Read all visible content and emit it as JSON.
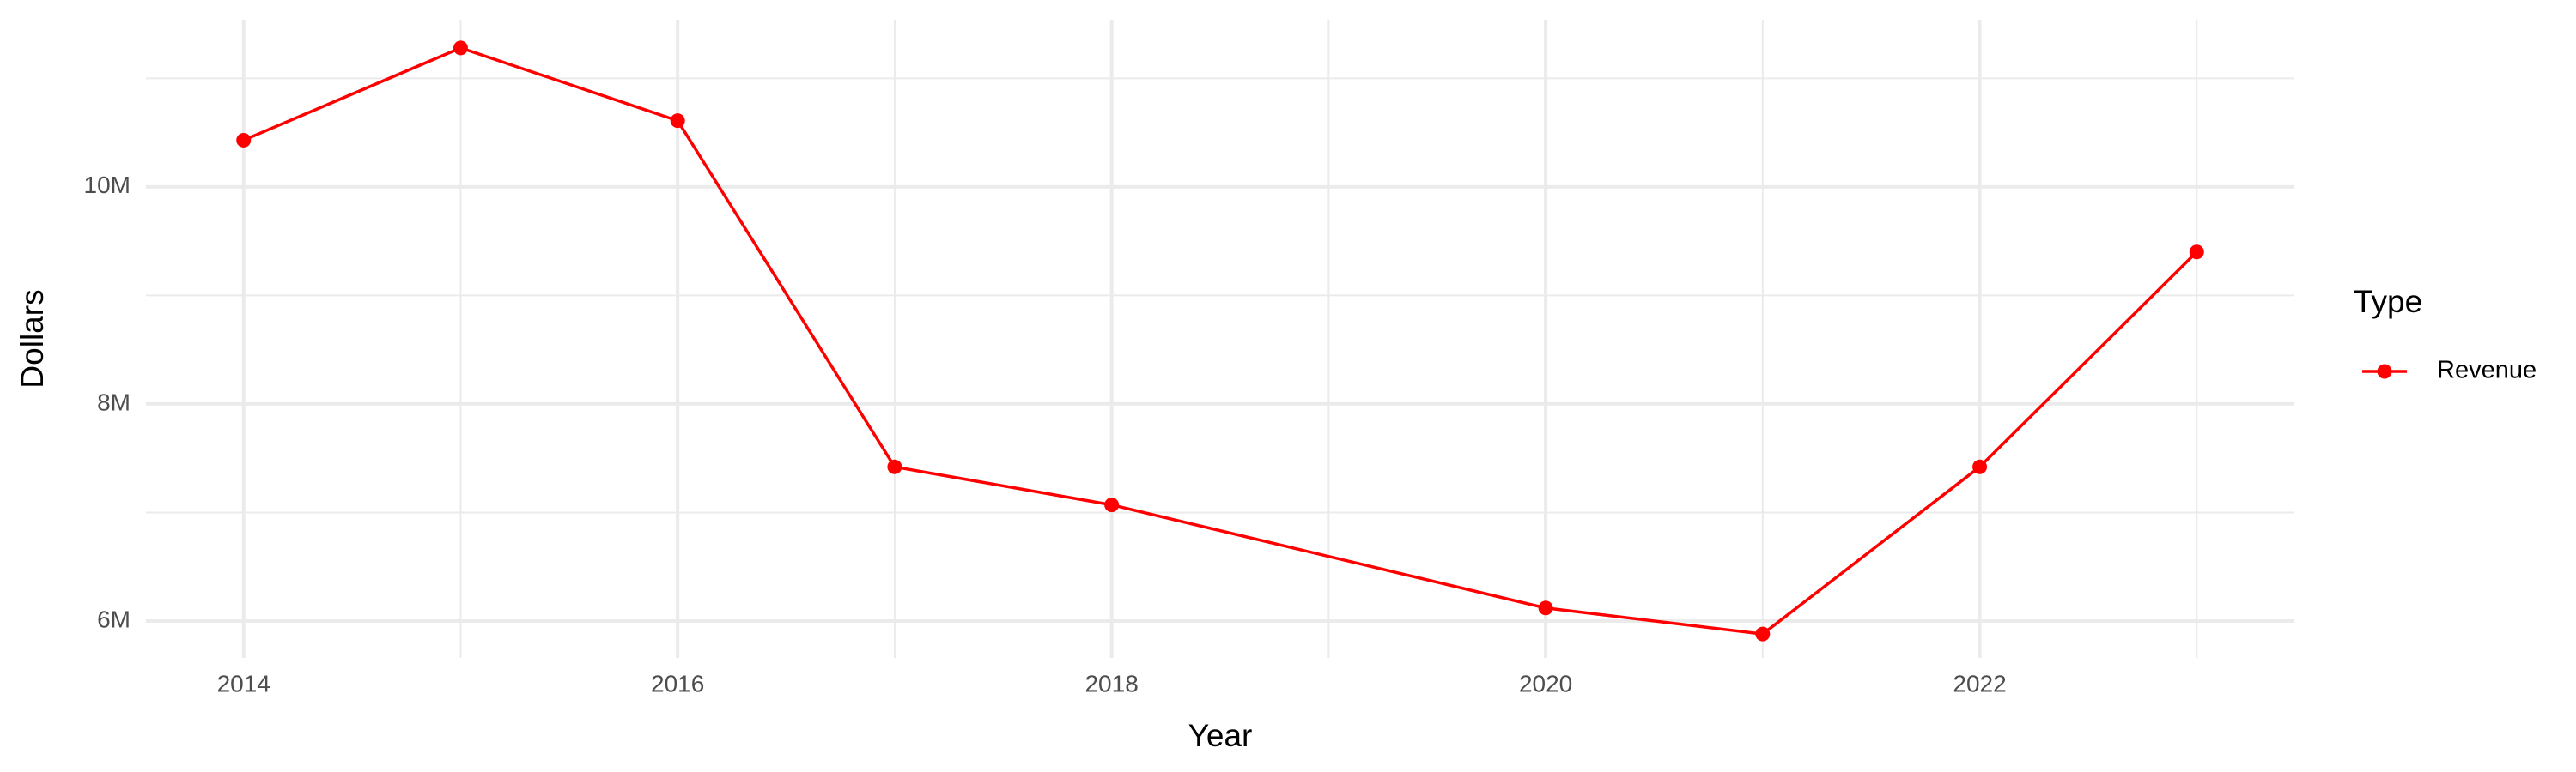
{
  "chart_data": {
    "type": "line",
    "x_label": "Year",
    "y_label": "Dollars",
    "x": [
      2014,
      2015,
      2016,
      2017,
      2018,
      2020,
      2021,
      2022,
      2023
    ],
    "series": [
      {
        "name": "Revenue",
        "color": "#ff0000",
        "values": [
          10430000,
          11280000,
          10610000,
          7420000,
          7070000,
          6120000,
          5880000,
          7420000,
          9400000
        ]
      }
    ],
    "xlim": [
      2013.55,
      2023.45
    ],
    "xticks": [
      2014,
      2016,
      2018,
      2020,
      2022
    ],
    "x_minor_ticks": [
      2015,
      2017,
      2019,
      2021,
      2023
    ],
    "ylim": [
      5660000,
      11540000
    ],
    "yticks": [
      {
        "value": 6000000,
        "label": "6M"
      },
      {
        "value": 8000000,
        "label": "8M"
      },
      {
        "value": 10000000,
        "label": "10M"
      }
    ],
    "y_minor_ticks": [
      7000000,
      9000000,
      11000000
    ],
    "grid": true,
    "legend_title": "Type",
    "legend_position": "right"
  }
}
